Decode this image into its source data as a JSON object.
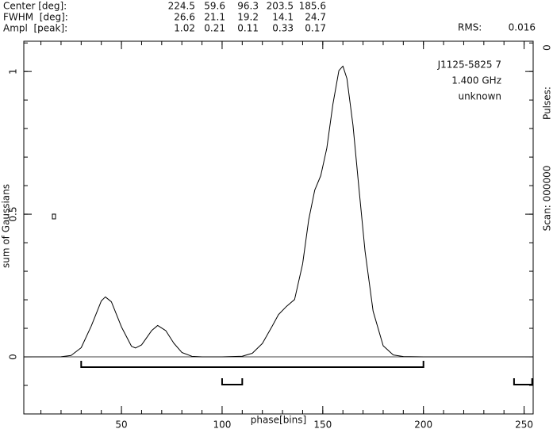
{
  "chart_data": {
    "type": "line",
    "parameters": [
      {
        "label": "Center [deg]:",
        "values": [
          224.5,
          59.6,
          96.3,
          203.5,
          185.6
        ]
      },
      {
        "label": "FWHM  [deg]:",
        "values": [
          26.6,
          21.1,
          19.2,
          14.1,
          24.7
        ]
      },
      {
        "label": "Ampl  [peak]:",
        "values": [
          1.02,
          0.21,
          0.11,
          0.33,
          0.17
        ]
      }
    ],
    "rms_label": "RMS:",
    "rms": 0.016,
    "info": [
      "J1125-5825 7",
      "1.400 GHz",
      "unknown"
    ],
    "side_labels": [
      "Scan: 000000",
      "Pulses:",
      "0"
    ],
    "xlabel": "phase[bins]",
    "ylabel": "sum of Gaussians",
    "x": [
      2,
      10,
      20,
      25,
      30,
      35,
      40,
      42,
      45,
      50,
      55,
      57,
      60,
      65,
      68,
      72,
      76,
      80,
      85,
      90,
      100,
      110,
      115,
      120,
      125,
      128,
      132,
      136,
      140,
      143,
      146,
      149,
      152,
      155,
      158,
      160,
      162,
      165,
      168,
      171,
      175,
      180,
      185,
      190,
      200,
      220,
      254
    ],
    "series": [
      {
        "color": "#000000",
        "values": [
          0,
          0,
          0.0005,
          0.005,
          0.032,
          0.108,
          0.196,
          0.21,
          0.193,
          0.105,
          0.037,
          0.031,
          0.042,
          0.092,
          0.11,
          0.092,
          0.048,
          0.0154,
          0.0019,
          0,
          0,
          0.0022,
          0.0126,
          0.047,
          0.109,
          0.148,
          0.177,
          0.201,
          0.326,
          0.48,
          0.584,
          0.635,
          0.731,
          0.884,
          1.003,
          1.019,
          0.975,
          0.812,
          0.588,
          0.37,
          0.16,
          0.039,
          0.0066,
          0.001,
          0,
          0,
          0
        ]
      }
    ],
    "windows": [
      {
        "start": 30,
        "end": 200
      },
      {
        "start": 100,
        "end": 110
      },
      {
        "start": 245,
        "end": 254
      }
    ],
    "xlim": [
      1.5,
      254.5
    ],
    "ylim": [
      -0.2,
      1.106
    ],
    "xticks": [
      50,
      100,
      150,
      200,
      250
    ],
    "yticks": [
      0,
      0.5,
      1
    ]
  }
}
